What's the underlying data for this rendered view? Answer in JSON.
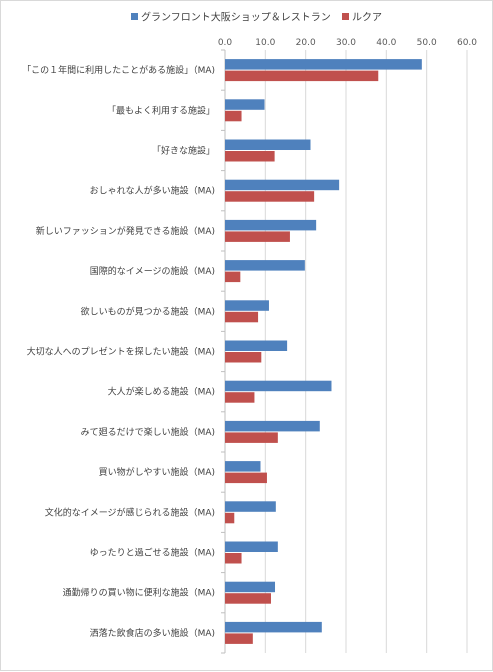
{
  "chart_data": {
    "type": "bar",
    "orientation": "horizontal",
    "categories": [
      "「この１年間に利用したことがある施設」（MA)",
      "「最もよく利用する施設」",
      "「好きな施設」",
      "おしゃれな人が多い施設（MA)",
      "新しいファッションが発見できる施設（MA)",
      "国際的なイメージの施設（MA)",
      "欲しいものが見つかる施設（MA)",
      "大切な人へのプレゼントを探したい施設（MA)",
      "大人が楽しめる施設（MA)",
      "みて廻るだけで楽しい施設（MA)",
      "買い物がしやすい施設（MA)",
      "文化的なイメージが感じられる施設（MA)",
      "ゆったりと過ごせる施設（MA)",
      "通勤帰りの買い物に便利な施設（MA)",
      "洒落た飲食店の多い施設（MA)"
    ],
    "series": [
      {
        "name": "グランフロント大阪ショップ＆レストラン",
        "color": "#4f81bd",
        "values": [
          48.8,
          9.8,
          21.2,
          28.3,
          22.6,
          19.8,
          10.9,
          15.4,
          26.4,
          23.5,
          8.8,
          12.6,
          13.1,
          12.4,
          24.0
        ]
      },
      {
        "name": "ルクア",
        "color": "#c0504d",
        "values": [
          38.0,
          4.1,
          12.3,
          22.1,
          16.1,
          3.8,
          8.2,
          9.0,
          7.3,
          13.1,
          10.4,
          2.3,
          4.1,
          11.4,
          6.9
        ]
      }
    ],
    "xlim": [
      0,
      60
    ],
    "xticks": [
      "0.0",
      "10.0",
      "20.0",
      "30.0",
      "40.0",
      "50.0",
      "60.0"
    ],
    "legend_position": "top",
    "grid": true
  }
}
